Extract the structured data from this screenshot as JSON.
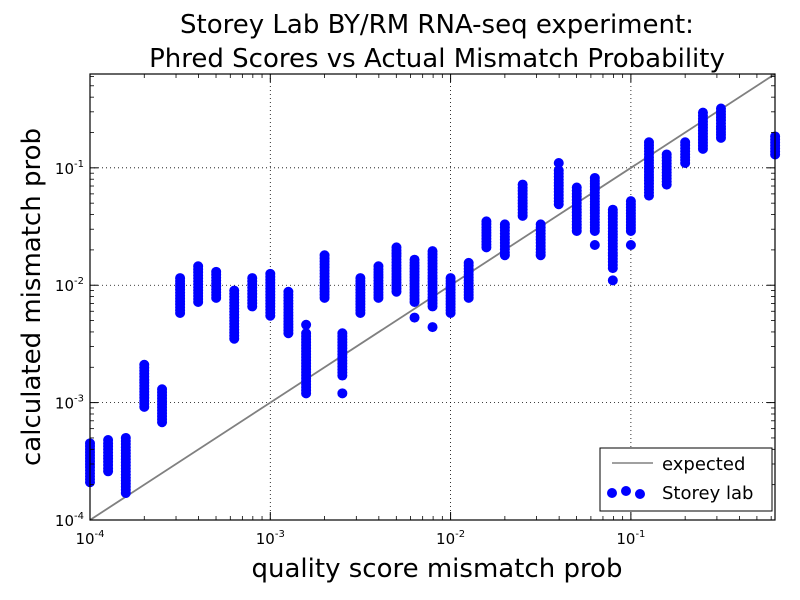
{
  "chart_data": {
    "type": "scatter",
    "title_lines": [
      "Storey Lab BY/RM RNA-seq experiment:",
      "Phred Scores vs Actual Mismatch Probability"
    ],
    "xlabel": "quality score mismatch prob",
    "ylabel": "calculated mismatch prob",
    "x_scale": "log",
    "y_scale": "log",
    "xlim": [
      0.0001,
      0.63
    ],
    "ylim": [
      0.0001,
      0.63
    ],
    "grid": true,
    "legend_position": "lower right",
    "x_tick_labels": [
      {
        "value": 0.0001,
        "base": "10",
        "exp": "-4"
      },
      {
        "value": 0.001,
        "base": "10",
        "exp": "-3"
      },
      {
        "value": 0.01,
        "base": "10",
        "exp": "-2"
      },
      {
        "value": 0.1,
        "base": "10",
        "exp": "-1"
      }
    ],
    "y_tick_labels": [
      {
        "value": 0.0001,
        "base": "10",
        "exp": "-4"
      },
      {
        "value": 0.001,
        "base": "10",
        "exp": "-3"
      },
      {
        "value": 0.01,
        "base": "10",
        "exp": "-2"
      },
      {
        "value": 0.1,
        "base": "10",
        "exp": "-1"
      }
    ],
    "series": [
      {
        "name": "expected",
        "kind": "line",
        "color": "#808080",
        "points": [
          [
            0.0001,
            0.0001
          ],
          [
            0.63,
            0.63
          ]
        ]
      },
      {
        "name": "Storey lab",
        "kind": "scatter",
        "color": "#0000ff",
        "ranges": [
          {
            "x": 0.0001,
            "y_min": 0.00021,
            "y_max": 0.00045,
            "outliers": []
          },
          {
            "x": 0.000126,
            "y_min": 0.00026,
            "y_max": 0.00048,
            "outliers": []
          },
          {
            "x": 0.000158,
            "y_min": 0.00017,
            "y_max": 0.0005,
            "outliers": []
          },
          {
            "x": 0.0002,
            "y_min": 0.00092,
            "y_max": 0.0021,
            "outliers": []
          },
          {
            "x": 0.000251,
            "y_min": 0.00068,
            "y_max": 0.0013,
            "outliers": []
          },
          {
            "x": 0.000316,
            "y_min": 0.0058,
            "y_max": 0.0115,
            "outliers": []
          },
          {
            "x": 0.000398,
            "y_min": 0.0072,
            "y_max": 0.0145,
            "outliers": []
          },
          {
            "x": 0.000501,
            "y_min": 0.0078,
            "y_max": 0.013,
            "outliers": []
          },
          {
            "x": 0.000631,
            "y_min": 0.0035,
            "y_max": 0.009,
            "outliers": []
          },
          {
            "x": 0.000794,
            "y_min": 0.0066,
            "y_max": 0.0115,
            "outliers": []
          },
          {
            "x": 0.001,
            "y_min": 0.0055,
            "y_max": 0.0125,
            "outliers": []
          },
          {
            "x": 0.00126,
            "y_min": 0.0039,
            "y_max": 0.0088,
            "outliers": []
          },
          {
            "x": 0.00158,
            "y_min": 0.0012,
            "y_max": 0.0039,
            "outliers": [
              0.0046
            ]
          },
          {
            "x": 0.002,
            "y_min": 0.0078,
            "y_max": 0.018,
            "outliers": []
          },
          {
            "x": 0.00251,
            "y_min": 0.0017,
            "y_max": 0.0039,
            "outliers": [
              0.0012
            ]
          },
          {
            "x": 0.00316,
            "y_min": 0.0058,
            "y_max": 0.0115,
            "outliers": []
          },
          {
            "x": 0.00398,
            "y_min": 0.0078,
            "y_max": 0.0145,
            "outliers": []
          },
          {
            "x": 0.00501,
            "y_min": 0.0088,
            "y_max": 0.021,
            "outliers": []
          },
          {
            "x": 0.00631,
            "y_min": 0.0072,
            "y_max": 0.0165,
            "outliers": [
              0.0053
            ]
          },
          {
            "x": 0.00794,
            "y_min": 0.0066,
            "y_max": 0.0195,
            "outliers": [
              0.0044
            ]
          },
          {
            "x": 0.01,
            "y_min": 0.0058,
            "y_max": 0.0115,
            "outliers": []
          },
          {
            "x": 0.0126,
            "y_min": 0.0078,
            "y_max": 0.0155,
            "outliers": []
          },
          {
            "x": 0.0158,
            "y_min": 0.021,
            "y_max": 0.035,
            "outliers": []
          },
          {
            "x": 0.02,
            "y_min": 0.018,
            "y_max": 0.033,
            "outliers": []
          },
          {
            "x": 0.0251,
            "y_min": 0.039,
            "y_max": 0.072,
            "outliers": []
          },
          {
            "x": 0.0316,
            "y_min": 0.018,
            "y_max": 0.033,
            "outliers": []
          },
          {
            "x": 0.0398,
            "y_min": 0.049,
            "y_max": 0.095,
            "outliers": [
              0.11
            ]
          },
          {
            "x": 0.0501,
            "y_min": 0.029,
            "y_max": 0.068,
            "outliers": []
          },
          {
            "x": 0.0631,
            "y_min": 0.029,
            "y_max": 0.082,
            "outliers": [
              0.022
            ]
          },
          {
            "x": 0.0794,
            "y_min": 0.014,
            "y_max": 0.044,
            "outliers": [
              0.011
            ]
          },
          {
            "x": 0.1,
            "y_min": 0.029,
            "y_max": 0.052,
            "outliers": [
              0.022
            ]
          },
          {
            "x": 0.126,
            "y_min": 0.058,
            "y_max": 0.165,
            "outliers": []
          },
          {
            "x": 0.158,
            "y_min": 0.072,
            "y_max": 0.13,
            "outliers": []
          },
          {
            "x": 0.2,
            "y_min": 0.11,
            "y_max": 0.165,
            "outliers": []
          },
          {
            "x": 0.251,
            "y_min": 0.145,
            "y_max": 0.295,
            "outliers": []
          },
          {
            "x": 0.316,
            "y_min": 0.18,
            "y_max": 0.32,
            "outliers": []
          },
          {
            "x": 0.631,
            "y_min": 0.13,
            "y_max": 0.185,
            "outliers": []
          }
        ]
      }
    ]
  }
}
